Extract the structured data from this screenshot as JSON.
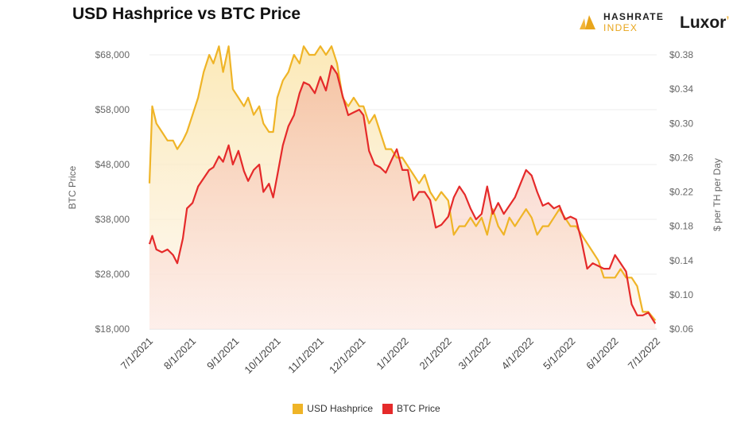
{
  "title": "USD Hashprice vs BTC Price",
  "brands": {
    "hashrate_line1": "HASHRATE",
    "hashrate_line2": "INDEX",
    "luxor": "Luxor",
    "luxor_mark": "’"
  },
  "colors": {
    "hashprice": "#efb427",
    "btc": "#e52a2a",
    "hashprice_fill": "#f8dfa0",
    "btc_fill": "#f7c2b0",
    "grid": "#ececec",
    "axis_text": "#666666"
  },
  "chart_data": {
    "type": "line",
    "title": "USD Hashprice vs BTC Price",
    "xlabel": "",
    "ylabel": "BTC Price",
    "y2label": "$ per TH per Day",
    "x_ticks": [
      "7/1/2021",
      "8/1/2021",
      "9/1/2021",
      "10/1/2021",
      "11/1/2021",
      "12/1/2021",
      "1/1/2022",
      "2/1/2022",
      "3/1/2022",
      "4/1/2022",
      "5/1/2022",
      "6/1/2022",
      "7/1/2022"
    ],
    "ylim": [
      18000,
      68000
    ],
    "y_ticks": [
      "$18,000",
      "$28,000",
      "$38,000",
      "$48,000",
      "$58,000",
      "$68,000"
    ],
    "y_tick_values": [
      18000,
      28000,
      38000,
      48000,
      58000,
      68000
    ],
    "y2lim": [
      0.06,
      0.38
    ],
    "y2_ticks": [
      "$0.06",
      "$0.10",
      "$0.14",
      "$0.18",
      "$0.22",
      "$0.26",
      "$0.30",
      "$0.34",
      "$0.38"
    ],
    "y2_tick_values": [
      0.06,
      0.1,
      0.14,
      0.18,
      0.22,
      0.26,
      0.3,
      0.34,
      0.38
    ],
    "grid": true,
    "legend_position": "bottom",
    "series": [
      {
        "name": "USD Hashprice",
        "axis": "right",
        "x": [
          "2021-07-01",
          "2021-07-03",
          "2021-07-06",
          "2021-07-10",
          "2021-07-14",
          "2021-07-18",
          "2021-07-21",
          "2021-07-25",
          "2021-07-28",
          "2021-08-01",
          "2021-08-05",
          "2021-08-09",
          "2021-08-13",
          "2021-08-16",
          "2021-08-20",
          "2021-08-23",
          "2021-08-27",
          "2021-08-30",
          "2021-09-03",
          "2021-09-07",
          "2021-09-10",
          "2021-09-14",
          "2021-09-18",
          "2021-09-21",
          "2021-09-25",
          "2021-09-28",
          "2021-10-01",
          "2021-10-05",
          "2021-10-09",
          "2021-10-13",
          "2021-10-17",
          "2021-10-20",
          "2021-10-24",
          "2021-10-28",
          "2021-11-01",
          "2021-11-05",
          "2021-11-09",
          "2021-11-13",
          "2021-11-17",
          "2021-11-21",
          "2021-11-25",
          "2021-11-29",
          "2021-12-02",
          "2021-12-06",
          "2021-12-10",
          "2021-12-14",
          "2021-12-18",
          "2021-12-22",
          "2021-12-26",
          "2021-12-30",
          "2022-01-03",
          "2022-01-07",
          "2022-01-11",
          "2022-01-15",
          "2022-01-19",
          "2022-01-23",
          "2022-01-27",
          "2022-02-01",
          "2022-02-05",
          "2022-02-09",
          "2022-02-13",
          "2022-02-17",
          "2022-02-21",
          "2022-02-25",
          "2022-03-01",
          "2022-03-05",
          "2022-03-09",
          "2022-03-13",
          "2022-03-17",
          "2022-03-21",
          "2022-03-25",
          "2022-03-29",
          "2022-04-02",
          "2022-04-06",
          "2022-04-10",
          "2022-04-14",
          "2022-04-18",
          "2022-04-22",
          "2022-04-26",
          "2022-04-30",
          "2022-05-04",
          "2022-05-08",
          "2022-05-12",
          "2022-05-16",
          "2022-05-20",
          "2022-05-24",
          "2022-05-28",
          "2022-06-01",
          "2022-06-05",
          "2022-06-09",
          "2022-06-13",
          "2022-06-17",
          "2022-06-21",
          "2022-06-25",
          "2022-06-30"
        ],
        "values": [
          0.23,
          0.32,
          0.3,
          0.29,
          0.28,
          0.28,
          0.27,
          0.28,
          0.29,
          0.31,
          0.33,
          0.36,
          0.38,
          0.37,
          0.39,
          0.36,
          0.39,
          0.34,
          0.33,
          0.32,
          0.33,
          0.31,
          0.32,
          0.3,
          0.29,
          0.29,
          0.33,
          0.35,
          0.36,
          0.38,
          0.37,
          0.39,
          0.38,
          0.38,
          0.39,
          0.38,
          0.39,
          0.37,
          0.33,
          0.32,
          0.33,
          0.32,
          0.32,
          0.3,
          0.31,
          0.29,
          0.27,
          0.27,
          0.26,
          0.26,
          0.25,
          0.24,
          0.23,
          0.24,
          0.22,
          0.21,
          0.22,
          0.21,
          0.17,
          0.18,
          0.18,
          0.19,
          0.18,
          0.19,
          0.17,
          0.2,
          0.18,
          0.17,
          0.19,
          0.18,
          0.19,
          0.2,
          0.19,
          0.17,
          0.18,
          0.18,
          0.19,
          0.2,
          0.19,
          0.18,
          0.18,
          0.17,
          0.16,
          0.15,
          0.14,
          0.12,
          0.12,
          0.12,
          0.13,
          0.12,
          0.12,
          0.11,
          0.08,
          0.08,
          0.07
        ]
      },
      {
        "name": "BTC Price",
        "axis": "left",
        "x": [
          "2021-07-01",
          "2021-07-03",
          "2021-07-06",
          "2021-07-10",
          "2021-07-14",
          "2021-07-18",
          "2021-07-21",
          "2021-07-25",
          "2021-07-28",
          "2021-08-01",
          "2021-08-05",
          "2021-08-09",
          "2021-08-13",
          "2021-08-16",
          "2021-08-20",
          "2021-08-23",
          "2021-08-27",
          "2021-08-30",
          "2021-09-03",
          "2021-09-07",
          "2021-09-10",
          "2021-09-14",
          "2021-09-18",
          "2021-09-21",
          "2021-09-25",
          "2021-09-28",
          "2021-10-01",
          "2021-10-05",
          "2021-10-09",
          "2021-10-13",
          "2021-10-17",
          "2021-10-20",
          "2021-10-24",
          "2021-10-28",
          "2021-11-01",
          "2021-11-05",
          "2021-11-09",
          "2021-11-13",
          "2021-11-17",
          "2021-11-21",
          "2021-11-25",
          "2021-11-29",
          "2021-12-02",
          "2021-12-06",
          "2021-12-10",
          "2021-12-14",
          "2021-12-18",
          "2021-12-22",
          "2021-12-26",
          "2021-12-30",
          "2022-01-03",
          "2022-01-07",
          "2022-01-11",
          "2022-01-15",
          "2022-01-19",
          "2022-01-23",
          "2022-01-27",
          "2022-02-01",
          "2022-02-05",
          "2022-02-09",
          "2022-02-13",
          "2022-02-17",
          "2022-02-21",
          "2022-02-25",
          "2022-03-01",
          "2022-03-05",
          "2022-03-09",
          "2022-03-13",
          "2022-03-17",
          "2022-03-21",
          "2022-03-25",
          "2022-03-29",
          "2022-04-02",
          "2022-04-06",
          "2022-04-10",
          "2022-04-14",
          "2022-04-18",
          "2022-04-22",
          "2022-04-26",
          "2022-04-30",
          "2022-05-04",
          "2022-05-08",
          "2022-05-12",
          "2022-05-16",
          "2022-05-20",
          "2022-05-24",
          "2022-05-28",
          "2022-06-01",
          "2022-06-05",
          "2022-06-09",
          "2022-06-13",
          "2022-06-17",
          "2022-06-21",
          "2022-06-25",
          "2022-06-30"
        ],
        "values": [
          33500,
          35000,
          32500,
          32000,
          32500,
          31500,
          30000,
          34500,
          40000,
          41000,
          44000,
          45500,
          47000,
          47500,
          49500,
          48500,
          51500,
          48000,
          50500,
          46800,
          45000,
          47000,
          48000,
          43000,
          44500,
          42000,
          46000,
          51500,
          55000,
          57000,
          61000,
          63000,
          62500,
          61000,
          64000,
          61500,
          66000,
          64500,
          60500,
          57000,
          57500,
          58000,
          57000,
          50500,
          48000,
          47500,
          46500,
          48700,
          50800,
          47000,
          47000,
          41500,
          43000,
          43000,
          41500,
          36500,
          37000,
          38500,
          42000,
          44000,
          42500,
          40000,
          38000,
          39000,
          44000,
          39000,
          41000,
          39000,
          40500,
          42000,
          44500,
          47000,
          46000,
          43000,
          40500,
          41000,
          40000,
          40500,
          38000,
          38500,
          38000,
          34000,
          29000,
          30000,
          29500,
          29000,
          29000,
          31500,
          30000,
          28500,
          22500,
          20500,
          20500,
          21000,
          19000
        ]
      }
    ]
  },
  "legend": {
    "hashprice_label": "USD Hashprice",
    "btc_label": "BTC Price"
  }
}
